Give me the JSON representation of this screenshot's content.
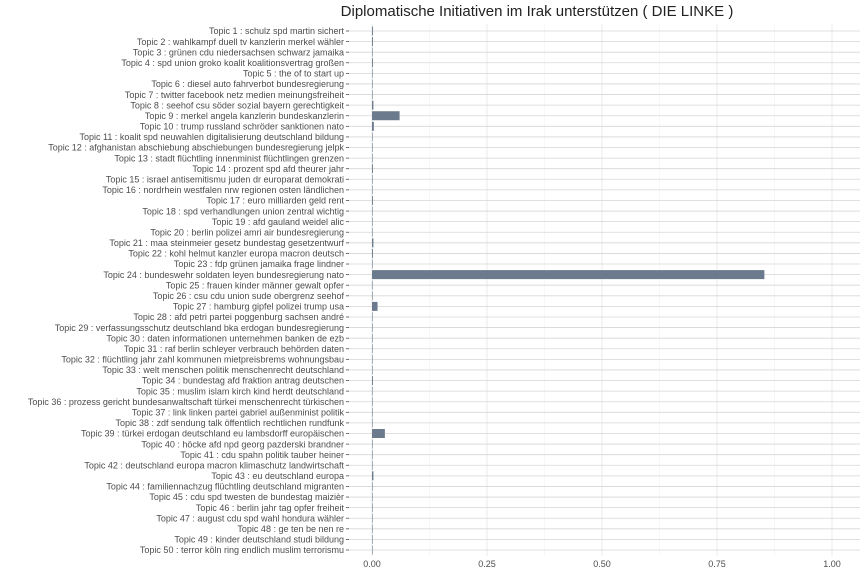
{
  "chart_data": {
    "type": "bar",
    "orientation": "horizontal",
    "title": "Diplomatische Initiativen im Irak unterstützen ( DIE LINKE )",
    "xlabel": "",
    "ylabel": "",
    "xlim": [
      0,
      1
    ],
    "xticks": [
      "0.00",
      "0.25",
      "0.50",
      "0.75",
      "1.00"
    ],
    "grid": true,
    "bar_color": "#6b7a8c",
    "categories": [
      "Topic 1 : schulz spd martin sichert",
      "Topic 2 : wahlkampf duell tv kanzlerin merkel wähler",
      "Topic 3 : grünen cdu niedersachsen schwarz jamaika",
      "Topic 4 : spd union groko koalit koalitionsvertrag großen",
      "Topic 5 : the of to start up",
      "Topic 6 : diesel auto fahrverbot bundesregierung",
      "Topic 7 : twitter facebook netz medien meinungsfreiheit",
      "Topic 8 : seehof csu söder sozial bayern gerechtigkeit",
      "Topic 9 : merkel angela kanzlerin bundeskanzlerin",
      "Topic 10 : trump russland schröder sanktionen nato",
      "Topic 11 : koalit spd neuwahlen digitalisierung deutschland bildung",
      "Topic 12 : afghanistan abschiebung abschiebungen bundesregierung jelpk",
      "Topic 13 : stadt flüchtling innenminist flüchtlingen grenzen",
      "Topic 14 : prozent spd afd theurer jahr",
      "Topic 15 : israel antisemitismu juden dr europarat demokrati",
      "Topic 16 : nordrhein westfalen nrw regionen osten ländlichen",
      "Topic 17 : euro milliarden geld rent",
      "Topic 18 : spd verhandlungen union zentral wichtig",
      "Topic 19 : afd gauland weidel alic",
      "Topic 20 : berlin polizei amri air bundesregierung",
      "Topic 21 : maa steinmeier gesetz bundestag gesetzentwurf",
      "Topic 22 : kohl helmut kanzler europa macron deutsch",
      "Topic 23 : fdp grünen jamaika frage lindner",
      "Topic 24 : bundeswehr soldaten leyen bundesregierung nato",
      "Topic 25 : frauen kinder männer gewalt opfer",
      "Topic 26 : csu cdu union sude obergrenz seehof",
      "Topic 27 : hamburg gipfel polizei trump usa",
      "Topic 28 : afd petri partei poggenburg sachsen andré",
      "Topic 29 : verfassungsschutz deutschland bka erdogan bundesregierung",
      "Topic 30 : daten informationen unternehmen banken de ezb",
      "Topic 31 : raf berlin schleyer verbrauch behörden daten",
      "Topic 32 : flüchtling jahr zahl kommunen mietpreisbrems wohnungsbau",
      "Topic 33 : welt menschen politik menschenrecht deutschland",
      "Topic 34 : bundestag afd fraktion antrag deutschen",
      "Topic 35 : muslim islam kirch kind herdt deutschland",
      "Topic 36 : prozess gericht bundesanwaltschaft türkei menschenrecht türkischen",
      "Topic 37 : link linken partei gabriel außenminist politik",
      "Topic 38 : zdf sendung talk öffentlich rechtlichen rundfunk",
      "Topic 39 : türkei erdogan deutschland eu lambsdorff europäischen",
      "Topic 40 : höcke afd npd georg pazderski brandner",
      "Topic 41 : cdu spahn politik tauber heiner",
      "Topic 42 : deutschland europa macron klimaschutz landwirtschaft",
      "Topic 43 : eu deutschland europa",
      "Topic 44 : familiennachzug flüchtling deutschland migranten",
      "Topic 45 : cdu spd twesten de bundestag maizièr",
      "Topic 46 : berlin jahr tag opfer freiheit",
      "Topic 47 : august cdu spd wahl hondura wähler",
      "Topic 48 : ge ten be nen re",
      "Topic 49 : kinder deutschland studi bildung",
      "Topic 50 : terror köln ring endlich muslim terrorismu"
    ],
    "values": [
      0.002,
      0.002,
      0.0,
      0.002,
      0.0,
      0.001,
      0.0,
      0.003,
      0.06,
      0.004,
      0.0,
      0.0,
      0.0,
      0.002,
      0.0,
      0.0,
      0.002,
      0.0,
      0.0,
      0.0,
      0.003,
      0.002,
      0.0,
      0.853,
      0.0,
      0.001,
      0.012,
      0.0,
      0.0,
      0.001,
      0.0,
      0.0,
      0.0,
      0.002,
      0.0,
      0.0,
      0.001,
      0.0,
      0.028,
      0.0,
      0.0,
      0.001,
      0.003,
      0.0,
      0.001,
      0.0,
      0.0,
      0.0,
      0.001,
      0.001
    ]
  }
}
